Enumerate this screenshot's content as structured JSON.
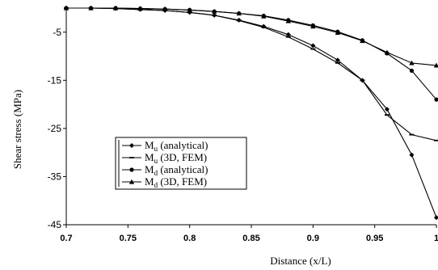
{
  "chart_data": {
    "type": "line",
    "xlabel": "Distance (x/L)",
    "ylabel": "Shear stress (MPa)",
    "xlim": [
      0.7,
      1.0
    ],
    "ylim": [
      -45,
      0
    ],
    "xticks": [
      "0.7",
      "0.75",
      "0.8",
      "0.85",
      "0.9",
      "0.95",
      "1"
    ],
    "yticks": [
      "-5",
      "-15",
      "-25",
      "-35",
      "-45"
    ],
    "grid": false,
    "legend_position": "bottom-left",
    "series": [
      {
        "name": "Mu (analytical)",
        "legend_main": "M",
        "legend_sub": "u",
        "legend_rest": " (analytical)",
        "marker": "diamond",
        "x": [
          0.7,
          0.72,
          0.74,
          0.76,
          0.78,
          0.8,
          0.82,
          0.84,
          0.86,
          0.88,
          0.9,
          0.92,
          0.94,
          0.96,
          0.98,
          1.0
        ],
        "y": [
          0,
          0,
          -0.1,
          -0.3,
          -0.5,
          -0.9,
          -1.5,
          -2.5,
          -3.8,
          -5.5,
          -7.8,
          -10.8,
          -15.0,
          -21.0,
          -30.5,
          -43.5
        ]
      },
      {
        "name": "Mu (3D, FEM)",
        "legend_main": "M",
        "legend_sub": "u",
        "legend_rest": " (3D, FEM)",
        "marker": "dash",
        "x": [
          0.7,
          0.72,
          0.74,
          0.76,
          0.78,
          0.8,
          0.82,
          0.84,
          0.86,
          0.88,
          0.9,
          0.92,
          0.94,
          0.96,
          0.98,
          1.0
        ],
        "y": [
          0,
          0,
          -0.1,
          -0.3,
          -0.5,
          -0.9,
          -1.5,
          -2.6,
          -4.0,
          -6.0,
          -8.5,
          -11.4,
          -15.0,
          -22.2,
          -26.3,
          -27.5
        ]
      },
      {
        "name": "Md (analytical)",
        "legend_main": "M",
        "legend_sub": "d",
        "legend_rest": " (analytical)",
        "marker": "circle",
        "x": [
          0.7,
          0.72,
          0.74,
          0.76,
          0.78,
          0.8,
          0.82,
          0.84,
          0.86,
          0.88,
          0.9,
          0.92,
          0.94,
          0.96,
          0.98,
          1.0
        ],
        "y": [
          0,
          0,
          0,
          -0.1,
          -0.2,
          -0.4,
          -0.7,
          -1.1,
          -1.6,
          -2.5,
          -3.6,
          -4.9,
          -6.7,
          -9.4,
          -13.0,
          -19.0
        ]
      },
      {
        "name": "Md (3D, FEM)",
        "legend_main": "M",
        "legend_sub": "d",
        "legend_rest": " (3D, FEM)",
        "marker": "triangle",
        "x": [
          0.7,
          0.72,
          0.74,
          0.76,
          0.78,
          0.8,
          0.82,
          0.84,
          0.86,
          0.88,
          0.9,
          0.92,
          0.94,
          0.96,
          0.98,
          1.0
        ],
        "y": [
          0,
          0,
          0,
          -0.1,
          -0.2,
          -0.4,
          -0.7,
          -1.1,
          -1.7,
          -2.7,
          -3.8,
          -5.1,
          -6.8,
          -9.2,
          -11.4,
          -11.9
        ]
      }
    ]
  }
}
